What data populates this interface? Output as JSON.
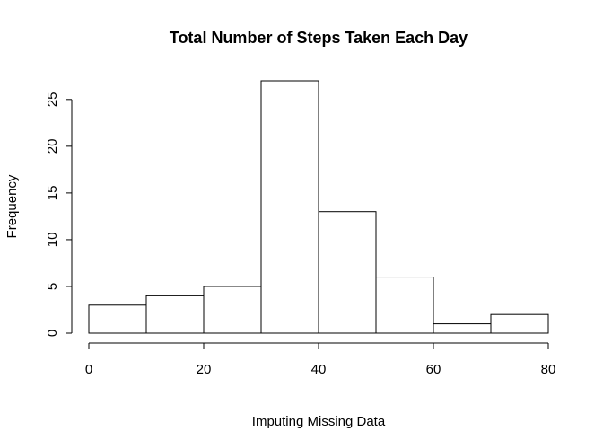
{
  "chart_data": {
    "type": "bar",
    "title": "Total Number of Steps Taken Each Day",
    "xlabel": "Imputing Missing Data",
    "ylabel": "Frequency",
    "bins": [
      [
        0,
        10
      ],
      [
        10,
        20
      ],
      [
        20,
        30
      ],
      [
        30,
        40
      ],
      [
        40,
        50
      ],
      [
        50,
        60
      ],
      [
        60,
        70
      ],
      [
        70,
        80
      ]
    ],
    "values": [
      3,
      4,
      5,
      27,
      13,
      6,
      1,
      2
    ],
    "xlim": [
      0,
      80
    ],
    "ylim": [
      0,
      27
    ],
    "x_ticks": [
      0,
      20,
      40,
      60,
      80
    ],
    "y_ticks": [
      0,
      5,
      10,
      15,
      20,
      25
    ],
    "grid": false,
    "colors": {
      "bar_fill": "#ffffff",
      "bar_stroke": "#000000"
    }
  }
}
